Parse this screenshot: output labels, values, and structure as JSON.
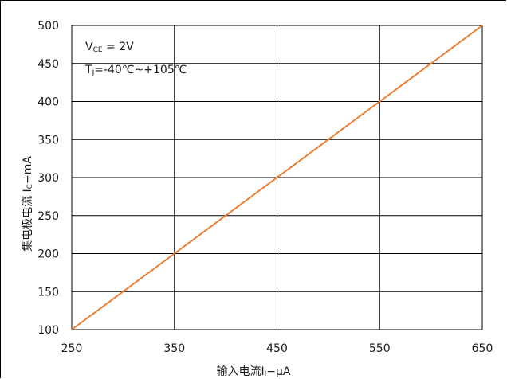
{
  "chart_data": {
    "type": "line",
    "xlabel": {
      "main": "输入电流I",
      "sub": "I",
      "unit": "−μA"
    },
    "ylabel": {
      "main": "集电极电流 I",
      "sub": "C",
      "unit": "−mA"
    },
    "xlim": [
      250,
      650
    ],
    "ylim": [
      100,
      500
    ],
    "x_ticks": [
      250,
      350,
      450,
      550,
      650
    ],
    "y_ticks": [
      100,
      150,
      200,
      250,
      300,
      350,
      400,
      450,
      500
    ],
    "grid": true,
    "annotations": [
      {
        "main": "V",
        "sub": "CE",
        "rest": " = 2V"
      },
      {
        "main": "T",
        "sub": "J",
        "rest": "=-40℃~+105℃"
      }
    ],
    "series": [
      {
        "x": [
          250,
          350,
          450,
          550,
          650
        ],
        "y": [
          100,
          200,
          300,
          400,
          500
        ],
        "color": "#ED7D31"
      }
    ]
  }
}
